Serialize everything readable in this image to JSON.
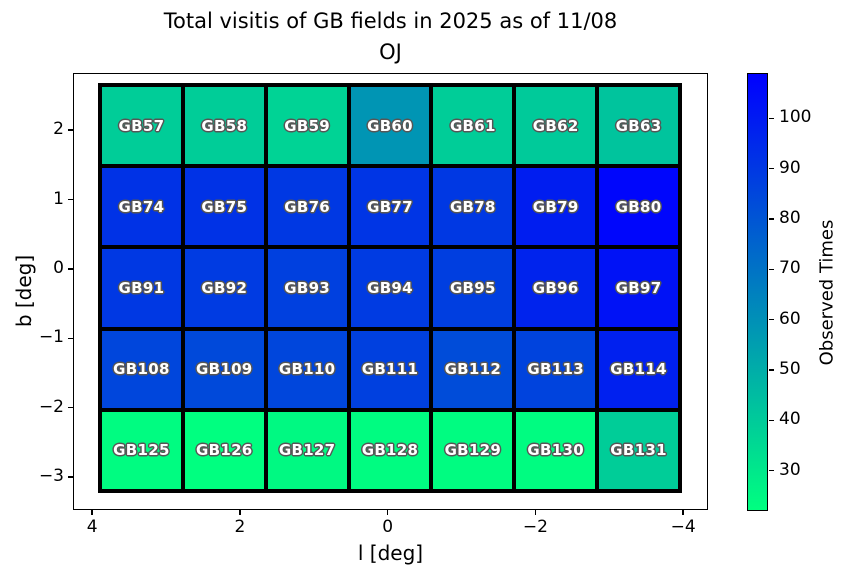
{
  "title": {
    "line1": "Total visitis of GB fields in 2025 as of 11/08",
    "line2": "OJ"
  },
  "axes": {
    "xlabel": "l [deg]",
    "ylabel": "b [deg]",
    "xticks": [
      {
        "label": "4",
        "value": 4
      },
      {
        "label": "2",
        "value": 2
      },
      {
        "label": "0",
        "value": 0
      },
      {
        "label": "−2",
        "value": -2
      },
      {
        "label": "−4",
        "value": -4
      }
    ],
    "yticks": [
      {
        "label": "2",
        "value": 2
      },
      {
        "label": "1",
        "value": 1
      },
      {
        "label": "0",
        "value": 0
      },
      {
        "label": "−1",
        "value": -1
      },
      {
        "label": "−2",
        "value": -2
      },
      {
        "label": "−3",
        "value": -3
      }
    ],
    "x_axis_inverted": true
  },
  "colorbar": {
    "label": "Observed Times",
    "ticks": [
      {
        "label": "100",
        "value": 100
      },
      {
        "label": "90",
        "value": 90
      },
      {
        "label": "80",
        "value": 80
      },
      {
        "label": "70",
        "value": 70
      },
      {
        "label": "60",
        "value": 60
      },
      {
        "label": "50",
        "value": 50
      },
      {
        "label": "40",
        "value": 40
      },
      {
        "label": "30",
        "value": 30
      }
    ],
    "vmin": 22,
    "vmax": 109,
    "top_color": "#0000ff",
    "mid_color": "#0080bf",
    "bottom_color": "#00ff80",
    "colormap": "winter_r (green low -> blue high)"
  },
  "chart_data": {
    "type": "heatmap",
    "title": "Total visitis of GB fields in 2025 as of 11/08\nOJ",
    "xlabel": "l [deg]",
    "ylabel": "b [deg]",
    "xlim": [
      4.3,
      -4.3
    ],
    "ylim": [
      -3.5,
      2.8
    ],
    "grid_shape": [
      5,
      7
    ],
    "fields": [
      [
        "GB57",
        "GB58",
        "GB59",
        "GB60",
        "GB61",
        "GB62",
        "GB63"
      ],
      [
        "GB74",
        "GB75",
        "GB76",
        "GB77",
        "GB78",
        "GB79",
        "GB80"
      ],
      [
        "GB91",
        "GB92",
        "GB93",
        "GB94",
        "GB95",
        "GB96",
        "GB97"
      ],
      [
        "GB108",
        "GB109",
        "GB110",
        "GB111",
        "GB112",
        "GB113",
        "GB114"
      ],
      [
        "GB125",
        "GB126",
        "GB127",
        "GB128",
        "GB129",
        "GB130",
        "GB131"
      ]
    ],
    "values_estimated_from_color": [
      [
        39,
        39,
        37,
        58,
        39,
        40,
        42
      ],
      [
        92,
        92,
        90,
        91,
        90,
        99,
        107
      ],
      [
        90,
        89,
        87,
        89,
        88,
        97,
        103
      ],
      [
        85,
        84,
        85,
        87,
        83,
        86,
        98
      ],
      [
        23,
        22,
        24,
        23,
        23,
        23,
        39
      ]
    ],
    "colorbar_label": "Observed Times",
    "value_range": [
      22,
      109
    ],
    "legend_position": "right-colorbar"
  }
}
